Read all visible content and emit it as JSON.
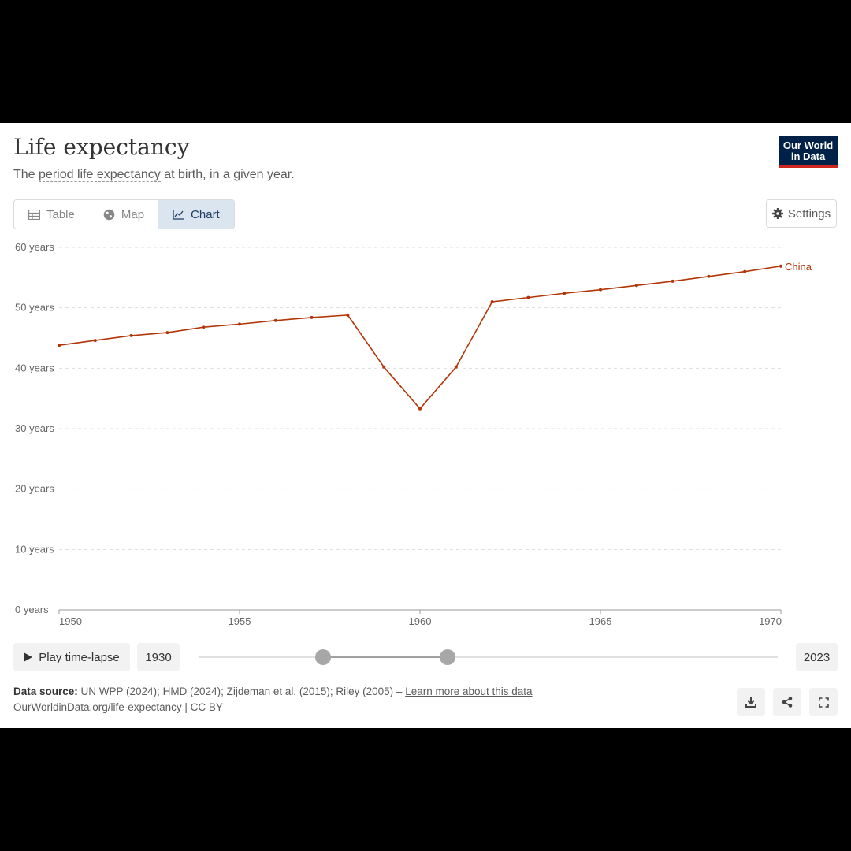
{
  "header": {
    "title": "Life expectancy",
    "subtitle_prefix": "The ",
    "subtitle_term": "period life expectancy",
    "subtitle_suffix": " at birth, in a given year."
  },
  "logo": {
    "line1": "Our World",
    "line2": "in Data"
  },
  "tabs": [
    {
      "label": "Table",
      "icon": "table-icon"
    },
    {
      "label": "Map",
      "icon": "globe-icon"
    },
    {
      "label": "Chart",
      "icon": "line-chart-icon",
      "active": true
    }
  ],
  "settings_label": "Settings",
  "chart_data": {
    "type": "line",
    "ylim": [
      0,
      60
    ],
    "xlim": [
      1950,
      1970
    ],
    "y_ticks": [
      0,
      10,
      20,
      30,
      40,
      50,
      60
    ],
    "y_tick_labels": [
      "0 years",
      "10 years",
      "20 years",
      "30 years",
      "40 years",
      "50 years",
      "60 years"
    ],
    "x_ticks": [
      1950,
      1955,
      1960,
      1965,
      1970
    ],
    "x_tick_labels": [
      "1950",
      "1955",
      "1960",
      "1965",
      "1970"
    ],
    "grid": true,
    "series": [
      {
        "name": "China",
        "color": "#b13507",
        "x": [
          1950,
          1951,
          1952,
          1953,
          1954,
          1955,
          1956,
          1957,
          1958,
          1959,
          1960,
          1961,
          1962,
          1963,
          1964,
          1965,
          1966,
          1967,
          1968,
          1969,
          1970
        ],
        "values": [
          43.8,
          44.6,
          45.4,
          45.9,
          46.8,
          47.3,
          47.9,
          48.4,
          48.8,
          40.2,
          33.3,
          40.2,
          51.0,
          51.7,
          52.4,
          53.0,
          53.7,
          54.4,
          55.2,
          56.0,
          56.9
        ]
      }
    ]
  },
  "timeline": {
    "play_label": "Play time-lapse",
    "start_year": "1930",
    "end_year": "2023",
    "range_start": 1950,
    "range_end": 1970,
    "min": 1930,
    "max": 2023
  },
  "footer": {
    "source_label": "Data source:",
    "source_text": " UN WPP (2024); HMD (2024); Zijdeman et al. (2015); Riley (2005) – ",
    "learn_more": "Learn more about this data",
    "url_text": "OurWorldinData.org/life-expectancy | CC BY"
  }
}
